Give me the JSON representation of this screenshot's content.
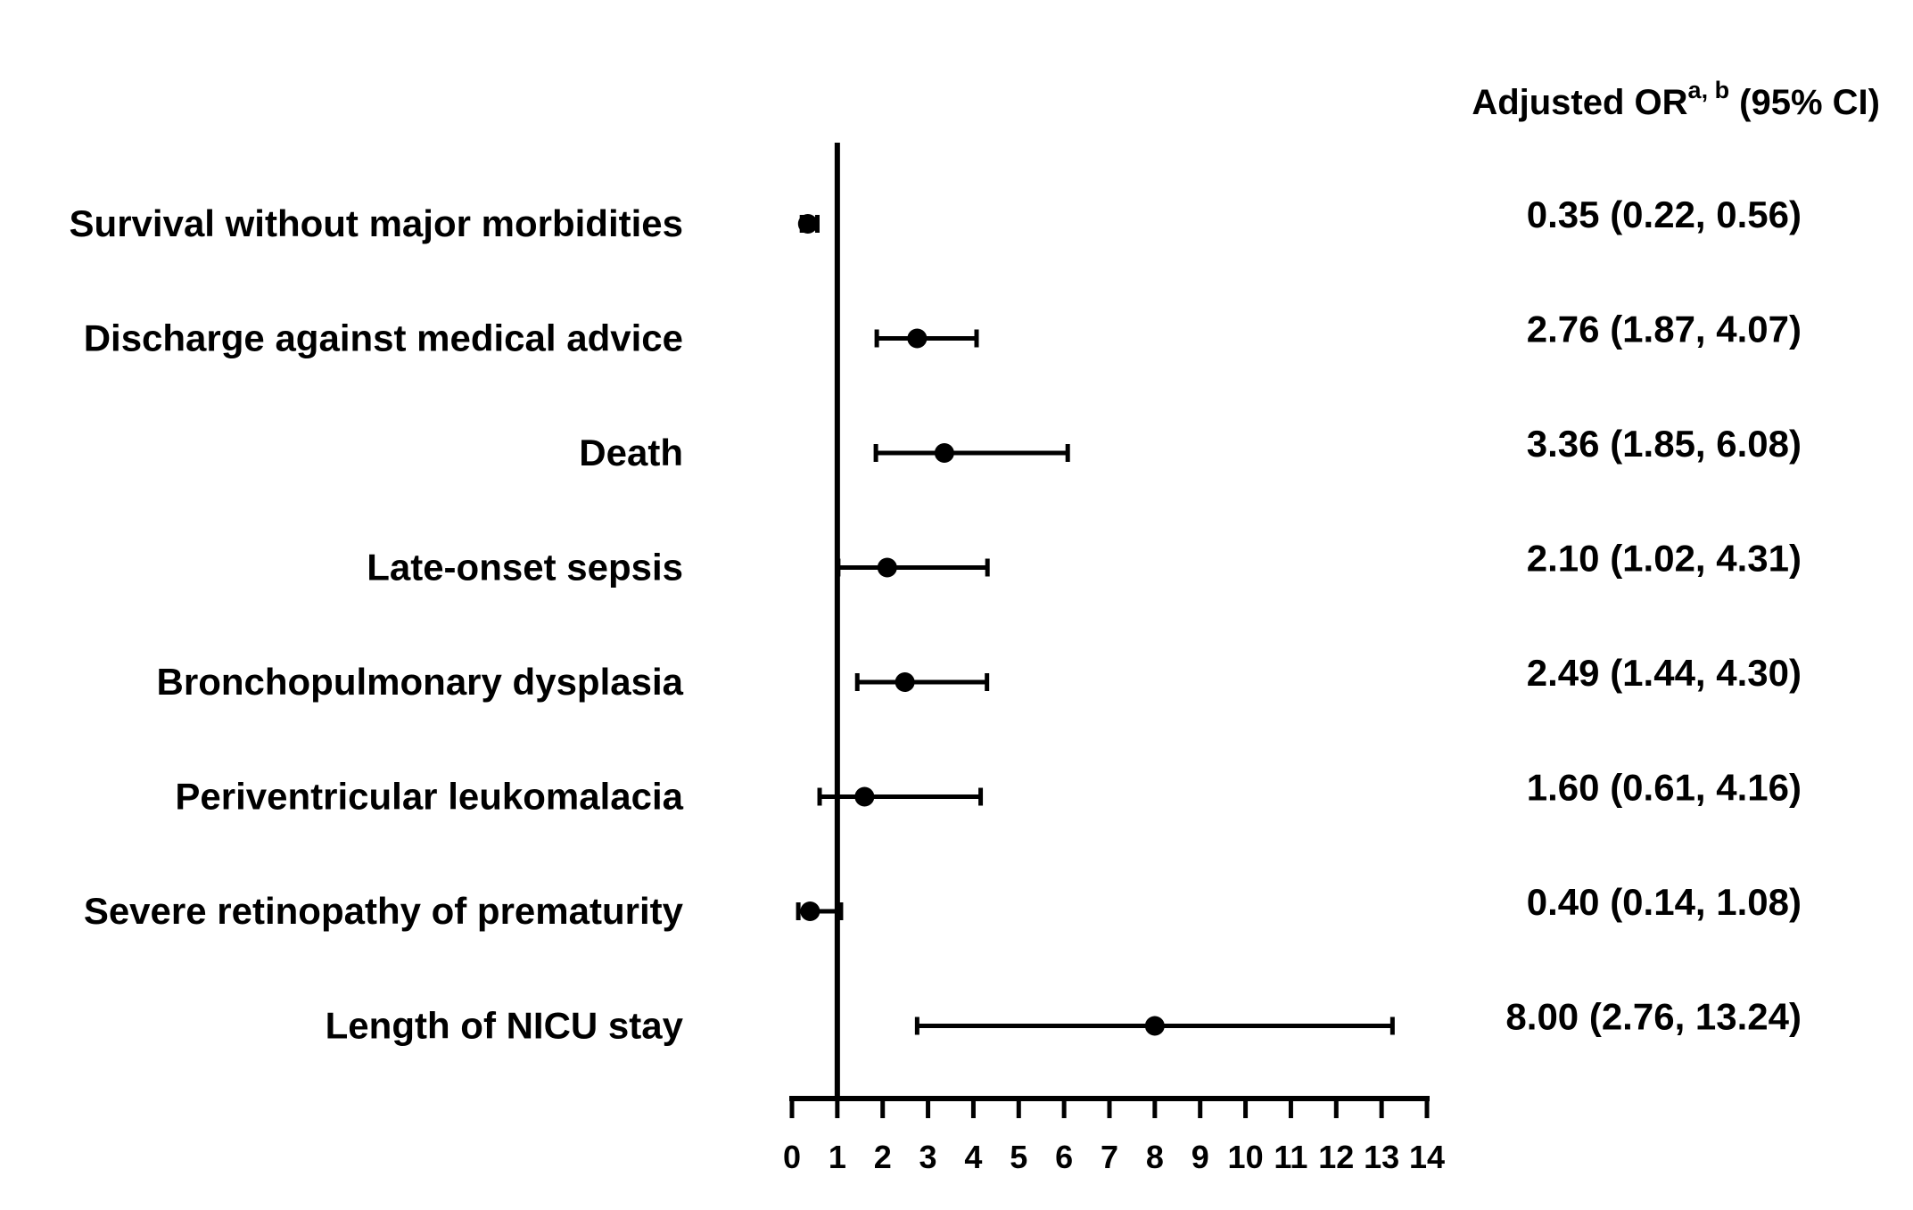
{
  "chart_data": {
    "type": "forest",
    "header_main": "Adjusted OR",
    "header_sup": "a, b",
    "header_rest": " (95% CI)",
    "reference_line": 1,
    "xlim": [
      0,
      14
    ],
    "x_ticks": [
      "0",
      "1",
      "2",
      "3",
      "4",
      "5",
      "6",
      "7",
      "8",
      "9",
      "10",
      "11",
      "12",
      "13",
      "14"
    ],
    "rows": [
      {
        "label": "Survival without major morbidities",
        "estimate": 0.35,
        "lower": 0.22,
        "upper": 0.56,
        "text": "0.35 (0.22, 0.56)"
      },
      {
        "label": "Discharge against medical advice",
        "estimate": 2.76,
        "lower": 1.87,
        "upper": 4.07,
        "text": "2.76 (1.87, 4.07)"
      },
      {
        "label": "Death",
        "estimate": 3.36,
        "lower": 1.85,
        "upper": 6.08,
        "text": "3.36 (1.85, 6.08)"
      },
      {
        "label": "Late-onset sepsis",
        "estimate": 2.1,
        "lower": 1.02,
        "upper": 4.31,
        "text": "2.10 (1.02, 4.31)"
      },
      {
        "label": "Bronchopulmonary dysplasia",
        "estimate": 2.49,
        "lower": 1.44,
        "upper": 4.3,
        "text": "2.49 (1.44, 4.30)"
      },
      {
        "label": "Periventricular leukomalacia",
        "estimate": 1.6,
        "lower": 0.61,
        "upper": 4.16,
        "text": "1.60 (0.61, 4.16)"
      },
      {
        "label": "Severe retinopathy of prematurity",
        "estimate": 0.4,
        "lower": 0.14,
        "upper": 1.08,
        "text": "0.40 (0.14, 1.08)"
      },
      {
        "label": "Length of NICU stay",
        "estimate": 8.0,
        "lower": 2.76,
        "upper": 13.24,
        "text": "8.00 (2.76, 13.24)"
      }
    ]
  }
}
